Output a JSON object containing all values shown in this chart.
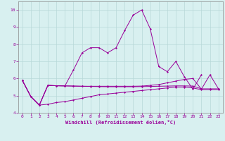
{
  "background_color": "#d8f0f0",
  "grid_color": "#b8d8d8",
  "line_color": "#990099",
  "x": [
    0,
    1,
    2,
    3,
    4,
    5,
    6,
    7,
    8,
    9,
    10,
    11,
    12,
    13,
    14,
    15,
    16,
    17,
    18,
    19,
    20,
    21,
    22,
    23
  ],
  "line_low": [
    5.9,
    4.95,
    4.45,
    4.5,
    4.6,
    4.65,
    4.75,
    4.85,
    4.95,
    5.05,
    5.1,
    5.15,
    5.2,
    5.25,
    5.3,
    5.35,
    5.4,
    5.45,
    5.5,
    5.5,
    5.45,
    5.35,
    5.35,
    5.35
  ],
  "line_mid1": [
    5.9,
    4.95,
    4.45,
    5.6,
    5.58,
    5.57,
    5.56,
    5.55,
    5.54,
    5.53,
    5.52,
    5.52,
    5.52,
    5.52,
    5.53,
    5.54,
    5.55,
    5.56,
    5.57,
    5.57,
    5.56,
    5.4,
    5.4,
    5.4
  ],
  "line_mid2": [
    5.9,
    4.95,
    4.45,
    5.6,
    5.58,
    5.57,
    5.56,
    5.55,
    5.55,
    5.55,
    5.55,
    5.55,
    5.55,
    5.55,
    5.56,
    5.6,
    5.65,
    5.75,
    5.85,
    5.95,
    6.0,
    5.38,
    6.22,
    5.4
  ],
  "line_peak": [
    5.9,
    4.95,
    4.45,
    5.6,
    5.58,
    5.57,
    6.5,
    7.5,
    7.8,
    7.8,
    7.5,
    7.8,
    8.8,
    9.7,
    10.0,
    8.9,
    6.7,
    6.4,
    7.0,
    6.1,
    5.38,
    6.22,
    null,
    null
  ],
  "ylim": [
    4.0,
    10.5
  ],
  "yticks": [
    4,
    5,
    6,
    7,
    8,
    9,
    10
  ],
  "xlim": [
    -0.5,
    23.5
  ],
  "xlabel": "Windchill (Refroidissement éolien,°C)"
}
